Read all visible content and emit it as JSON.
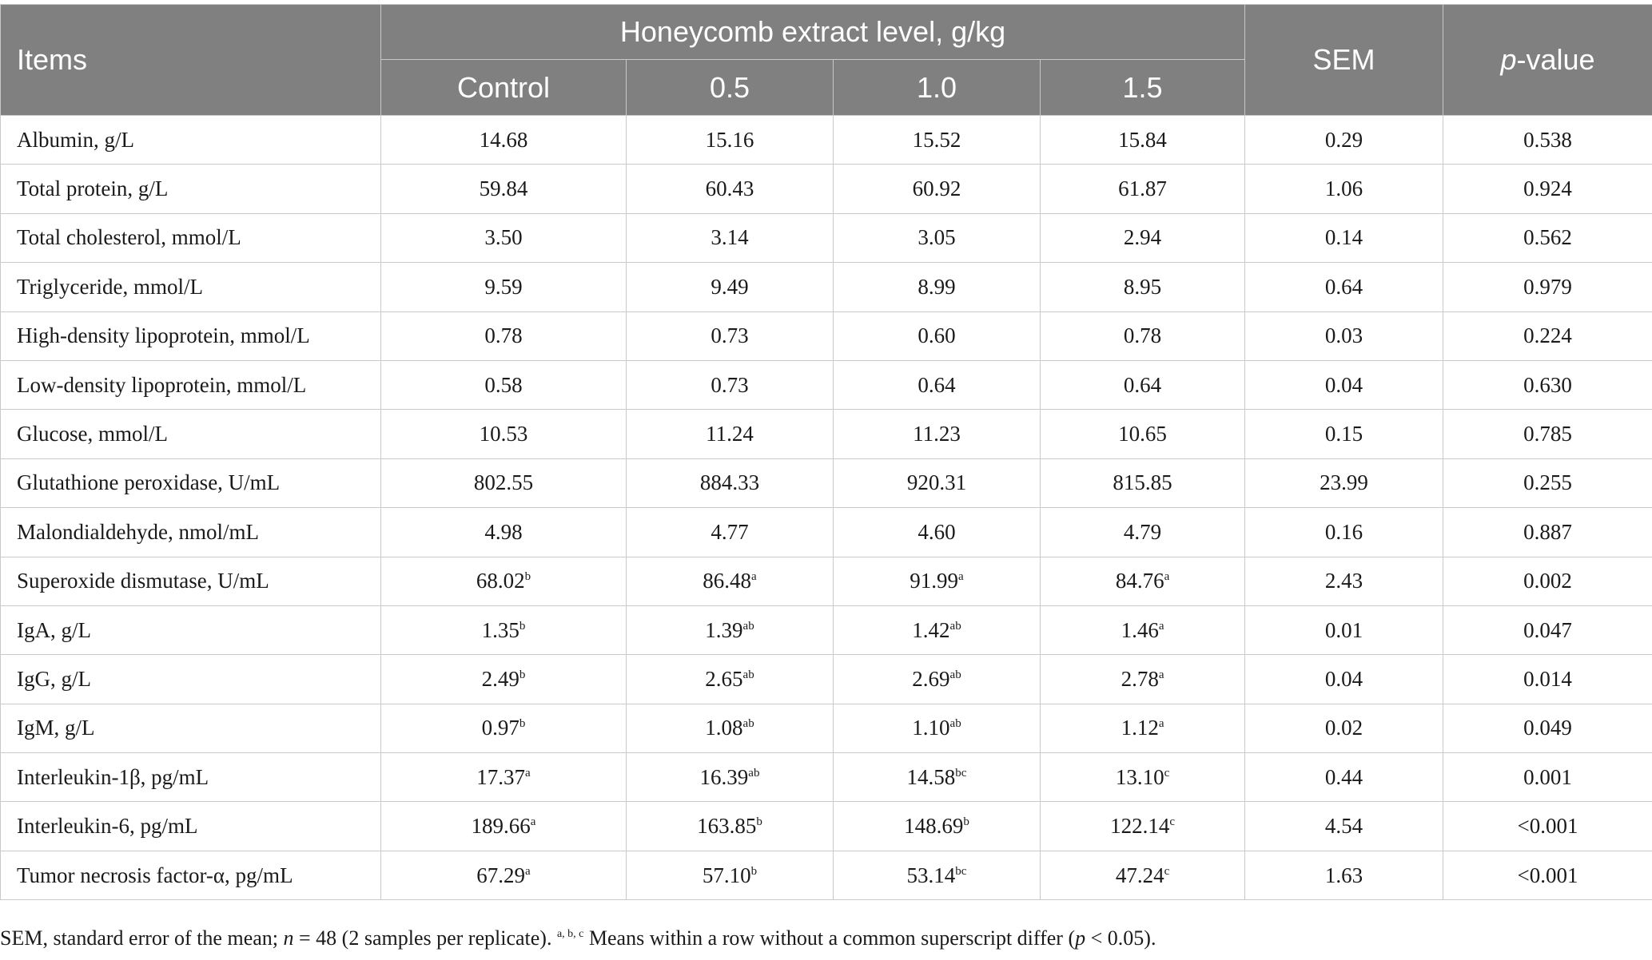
{
  "header": {
    "items": "Items",
    "group": "Honeycomb extract level, g/kg",
    "sem": "SEM",
    "pvalue_italic": "p",
    "pvalue_rest": "-value",
    "levels": [
      "Control",
      "0.5",
      "1.0",
      "1.5"
    ]
  },
  "rows": [
    {
      "label": "Albumin, g/L",
      "cells": [
        {
          "v": "14.68",
          "s": ""
        },
        {
          "v": "15.16",
          "s": ""
        },
        {
          "v": "15.52",
          "s": ""
        },
        {
          "v": "15.84",
          "s": ""
        }
      ],
      "sem": "0.29",
      "p": "0.538"
    },
    {
      "label": "Total protein, g/L",
      "cells": [
        {
          "v": "59.84",
          "s": ""
        },
        {
          "v": "60.43",
          "s": ""
        },
        {
          "v": "60.92",
          "s": ""
        },
        {
          "v": "61.87",
          "s": ""
        }
      ],
      "sem": "1.06",
      "p": "0.924"
    },
    {
      "label": "Total cholesterol, mmol/L",
      "cells": [
        {
          "v": "3.50",
          "s": ""
        },
        {
          "v": "3.14",
          "s": ""
        },
        {
          "v": "3.05",
          "s": ""
        },
        {
          "v": "2.94",
          "s": ""
        }
      ],
      "sem": "0.14",
      "p": "0.562"
    },
    {
      "label": "Triglyceride, mmol/L",
      "cells": [
        {
          "v": "9.59",
          "s": ""
        },
        {
          "v": "9.49",
          "s": ""
        },
        {
          "v": "8.99",
          "s": ""
        },
        {
          "v": "8.95",
          "s": ""
        }
      ],
      "sem": "0.64",
      "p": "0.979"
    },
    {
      "label": "High-density lipoprotein, mmol/L",
      "cells": [
        {
          "v": "0.78",
          "s": ""
        },
        {
          "v": "0.73",
          "s": ""
        },
        {
          "v": "0.60",
          "s": ""
        },
        {
          "v": "0.78",
          "s": ""
        }
      ],
      "sem": "0.03",
      "p": "0.224"
    },
    {
      "label": "Low-density lipoprotein, mmol/L",
      "cells": [
        {
          "v": "0.58",
          "s": ""
        },
        {
          "v": "0.73",
          "s": ""
        },
        {
          "v": "0.64",
          "s": ""
        },
        {
          "v": "0.64",
          "s": ""
        }
      ],
      "sem": "0.04",
      "p": "0.630"
    },
    {
      "label": "Glucose, mmol/L",
      "cells": [
        {
          "v": "10.53",
          "s": ""
        },
        {
          "v": "11.24",
          "s": ""
        },
        {
          "v": "11.23",
          "s": ""
        },
        {
          "v": "10.65",
          "s": ""
        }
      ],
      "sem": "0.15",
      "p": "0.785"
    },
    {
      "label": "Glutathione peroxidase, U/mL",
      "cells": [
        {
          "v": "802.55",
          "s": ""
        },
        {
          "v": "884.33",
          "s": ""
        },
        {
          "v": "920.31",
          "s": ""
        },
        {
          "v": "815.85",
          "s": ""
        }
      ],
      "sem": "23.99",
      "p": "0.255"
    },
    {
      "label": "Malondialdehyde, nmol/mL",
      "cells": [
        {
          "v": "4.98",
          "s": ""
        },
        {
          "v": "4.77",
          "s": ""
        },
        {
          "v": "4.60",
          "s": ""
        },
        {
          "v": "4.79",
          "s": ""
        }
      ],
      "sem": "0.16",
      "p": "0.887"
    },
    {
      "label": "Superoxide dismutase, U/mL",
      "cells": [
        {
          "v": "68.02",
          "s": "b"
        },
        {
          "v": "86.48",
          "s": "a"
        },
        {
          "v": "91.99",
          "s": "a"
        },
        {
          "v": "84.76",
          "s": "a"
        }
      ],
      "sem": "2.43",
      "p": "0.002"
    },
    {
      "label": "IgA, g/L",
      "cells": [
        {
          "v": "1.35",
          "s": "b"
        },
        {
          "v": "1.39",
          "s": "ab"
        },
        {
          "v": "1.42",
          "s": "ab"
        },
        {
          "v": "1.46",
          "s": "a"
        }
      ],
      "sem": "0.01",
      "p": "0.047"
    },
    {
      "label": "IgG, g/L",
      "cells": [
        {
          "v": "2.49",
          "s": "b"
        },
        {
          "v": "2.65",
          "s": "ab"
        },
        {
          "v": "2.69",
          "s": "ab"
        },
        {
          "v": "2.78",
          "s": "a"
        }
      ],
      "sem": "0.04",
      "p": "0.014"
    },
    {
      "label": "IgM, g/L",
      "cells": [
        {
          "v": "0.97",
          "s": "b"
        },
        {
          "v": "1.08",
          "s": "ab"
        },
        {
          "v": "1.10",
          "s": "ab"
        },
        {
          "v": "1.12",
          "s": "a"
        }
      ],
      "sem": "0.02",
      "p": "0.049"
    },
    {
      "label": "Interleukin-1β, pg/mL",
      "cells": [
        {
          "v": "17.37",
          "s": "a"
        },
        {
          "v": "16.39",
          "s": "ab"
        },
        {
          "v": "14.58",
          "s": "bc"
        },
        {
          "v": "13.10",
          "s": "c"
        }
      ],
      "sem": "0.44",
      "p": "0.001"
    },
    {
      "label": "Interleukin-6, pg/mL",
      "cells": [
        {
          "v": "189.66",
          "s": "a"
        },
        {
          "v": "163.85",
          "s": "b"
        },
        {
          "v": "148.69",
          "s": "b"
        },
        {
          "v": "122.14",
          "s": "c"
        }
      ],
      "sem": "4.54",
      "p": "<0.001"
    },
    {
      "label": "Tumor necrosis factor-α, pg/mL",
      "cells": [
        {
          "v": "67.29",
          "s": "a"
        },
        {
          "v": "57.10",
          "s": "b"
        },
        {
          "v": "53.14",
          "s": "bc"
        },
        {
          "v": "47.24",
          "s": "c"
        }
      ],
      "sem": "1.63",
      "p": "<0.001"
    }
  ],
  "footnote": {
    "part1": "SEM, standard error of the mean; ",
    "n_italic": "n",
    "part2": " = 48 (2 samples per replicate). ",
    "sup": "a, b, c",
    "part3": " Means within a row without a common superscript differ (",
    "p_italic": "p",
    "part4": " < 0.05)."
  }
}
